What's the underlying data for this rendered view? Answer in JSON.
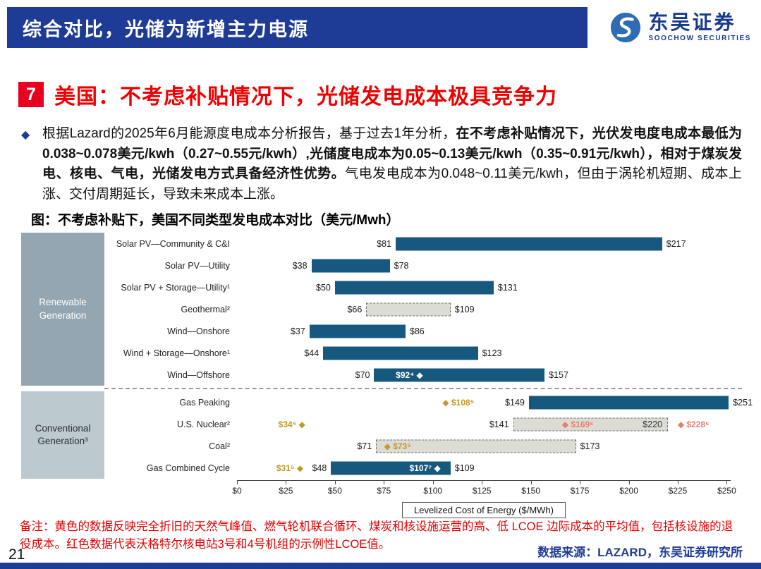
{
  "header": {
    "title": "综合对比，光储为新增主力电源",
    "brand_name": "东吴证券",
    "brand_subtitle": "SOOCHOW SECURITIES"
  },
  "section": {
    "number": "7",
    "title": "美国：不考虑补贴情况下，光储发电成本极具竞争力"
  },
  "paragraph": {
    "bullet": "◆",
    "parts": [
      {
        "text": "根据Lazard的2025年6月能源度电成本分析报告，基于过去1年分析，",
        "bold": false
      },
      {
        "text": "在不考虑补贴情况下，光伏发电度电成本最低为0.038~0.078美元/kwh（0.27~0.55元/kwh）,光储度电成本为0.05~0.13美元/kwh（0.35~0.91元/kwh），相对于煤炭发电、核电、气电，光储发电方式具备经济性优势。",
        "bold": true
      },
      {
        "text": "气电发电成本为0.048~0.11美元/kwh，但由于涡轮机短期、成本上涨、交付周期延长，导致未来成本上涨。",
        "bold": false
      }
    ]
  },
  "chart_title": "图：不考虑补贴下，美国不同类型发电成本对比（美元/Mwh）",
  "chart_data": {
    "type": "bar",
    "subtype": "horizontal-range",
    "axis": {
      "min": 0,
      "max": 250,
      "step": 25,
      "tick_prefix": "$",
      "title": "Levelized Cost of Energy ($/MWh)"
    },
    "colors": {
      "bar": "#17597E",
      "dashed_fill": "#DCDCD5",
      "gold": "#C2992B",
      "red": "#E87C6F",
      "white": "#FFFFFF",
      "dark": "#333333"
    },
    "groups": [
      {
        "label": "Renewable Generation"
      },
      {
        "label": "Conventional Generation³"
      }
    ],
    "rows": [
      {
        "group": 0,
        "label": "Solar PV—Community & C&I",
        "low": 81,
        "high": 217,
        "style": "solid",
        "low_label": "$81",
        "high_label": "$217"
      },
      {
        "group": 0,
        "label": "Solar PV—Utility",
        "low": 38,
        "high": 78,
        "style": "solid",
        "low_label": "$38",
        "high_label": "$78"
      },
      {
        "group": 0,
        "label": "Solar PV + Storage—Utility¹",
        "low": 50,
        "high": 131,
        "style": "solid",
        "low_label": "$50",
        "high_label": "$131"
      },
      {
        "group": 0,
        "label": "Geothermal²",
        "low": 66,
        "high": 109,
        "style": "dashed",
        "low_label": "$66",
        "high_label": "$109"
      },
      {
        "group": 0,
        "label": "Wind—Onshore",
        "low": 37,
        "high": 86,
        "style": "solid",
        "low_label": "$37",
        "high_label": "$86"
      },
      {
        "group": 0,
        "label": "Wind + Storage—Onshore¹",
        "low": 44,
        "high": 123,
        "style": "solid",
        "low_label": "$44",
        "high_label": "$123"
      },
      {
        "group": 0,
        "label": "Wind—Offshore",
        "low": 70,
        "high": 157,
        "style": "solid",
        "low_label": "$70",
        "high_label": "$157",
        "markers": [
          {
            "text": "$92⁴ ◆",
            "value": 88,
            "color": "white"
          }
        ]
      },
      {
        "group": 1,
        "label": "Gas Peaking",
        "low": 149,
        "high": 251,
        "style": "solid",
        "low_label": "$149",
        "high_label": "$251",
        "markers": [
          {
            "text": "◆ $108⁵",
            "value": 113,
            "color": "gold"
          }
        ]
      },
      {
        "group": 1,
        "label": "U.S. Nuclear²",
        "low": 141,
        "high": 220,
        "style": "dashed",
        "low_label": "$141",
        "high_label": "$220",
        "high_label_inside": true,
        "markers": [
          {
            "text": "$34⁵ ◆",
            "value": 28,
            "color": "gold"
          },
          {
            "text": "◆ $169⁶",
            "value": 174,
            "color": "red"
          },
          {
            "text": "◆ $228⁶",
            "value": 233,
            "color": "red"
          }
        ]
      },
      {
        "group": 1,
        "label": "Coal²",
        "low": 71,
        "high": 173,
        "style": "dashed",
        "low_label": "$71",
        "high_label": "$173",
        "markers": [
          {
            "text": "◆ $73⁵",
            "value": 82,
            "color": "gold"
          }
        ]
      },
      {
        "group": 1,
        "label": "Gas Combined Cycle",
        "low": 48,
        "high": 109,
        "style": "solid",
        "low_label": "$48",
        "high_label": "$109",
        "markers": [
          {
            "text": "$31⁵ ◆",
            "value": 27,
            "color": "gold"
          },
          {
            "text": "$107⁷ ◆",
            "value": 96,
            "color": "white"
          }
        ]
      }
    ]
  },
  "notes": {
    "text": "备注：黄色的数据反映完全折旧的天然气峰值、燃气轮机联合循环、煤炭和核设施运营的高、低 LCOE 边际成本的平均值，包括核设施的退役成本。红色数据代表沃格特尔核电站3号和4号机组的示例性LCOE值。"
  },
  "footer": {
    "page": "21",
    "source": "数据来源：LAZARD，东吴证券研究所"
  }
}
